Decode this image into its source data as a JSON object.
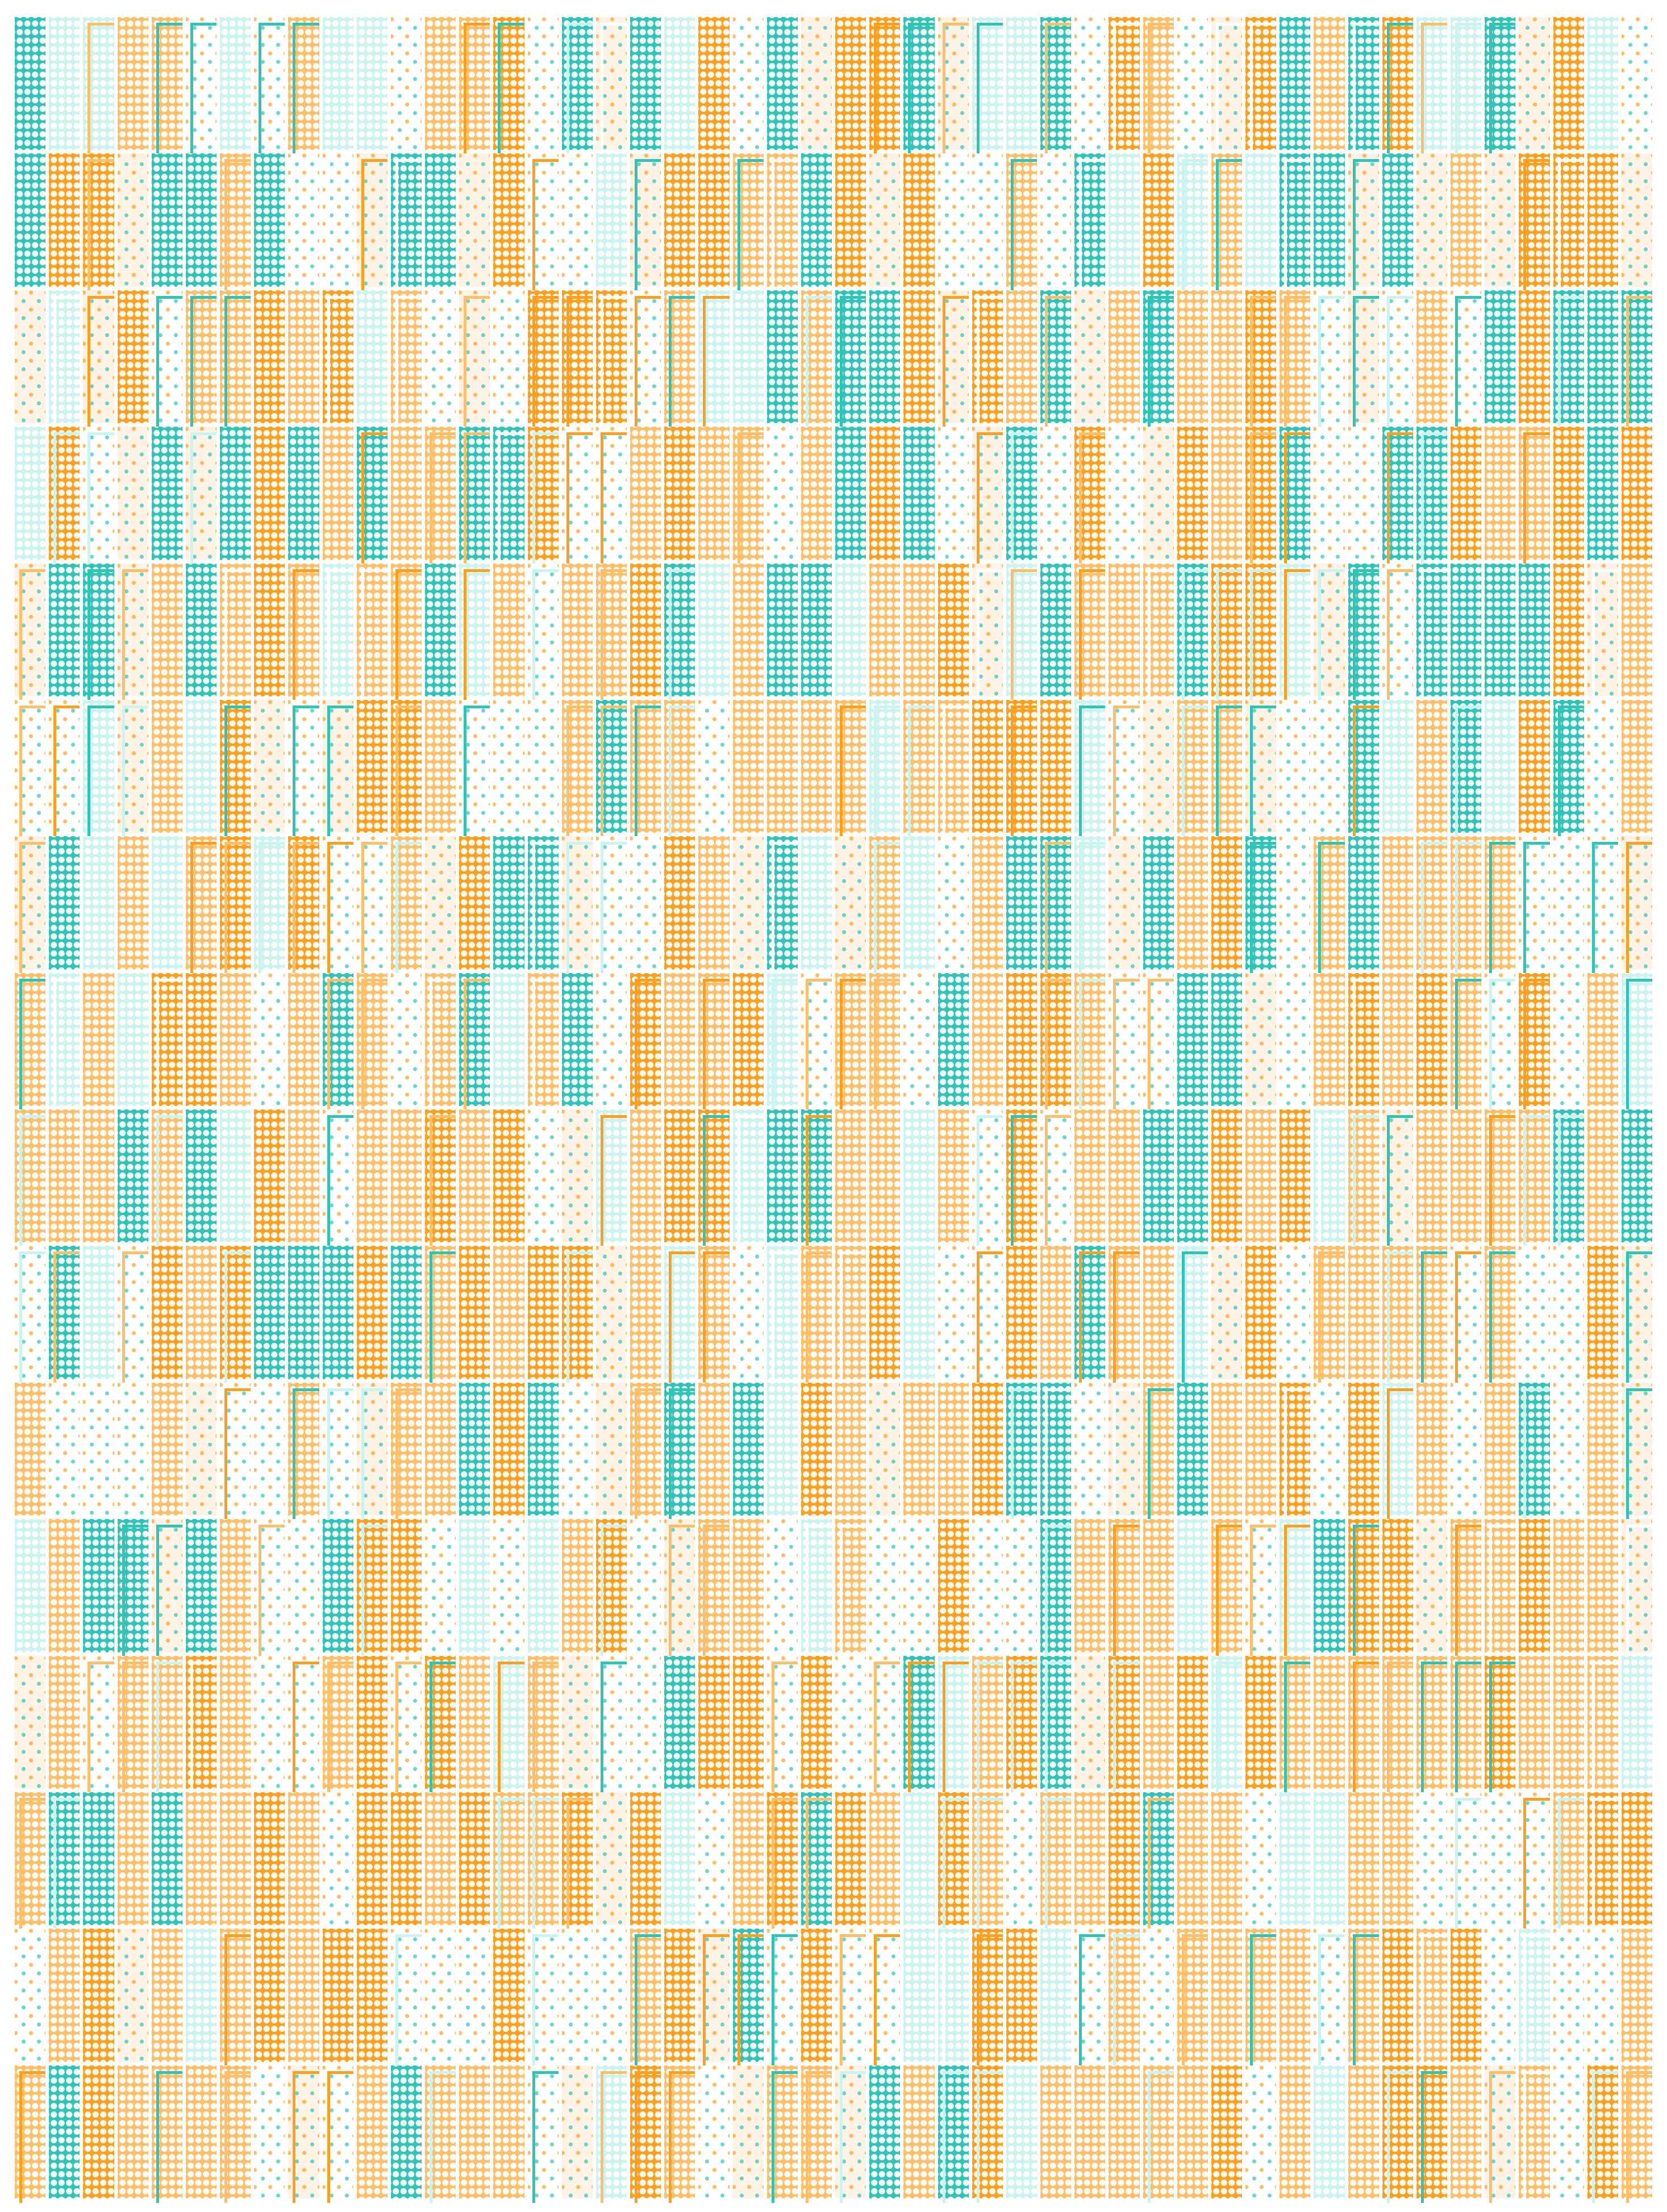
{
  "artwork": {
    "rows": 16,
    "columns": 48,
    "palette": {
      "orange": "#FF9F1C",
      "light_orange": "#FFBF69",
      "teal": "#2EC4B6",
      "light_teal": "#CBF3F0",
      "cream": "#FFF3E6",
      "white": "#FFFFFF"
    }
  }
}
